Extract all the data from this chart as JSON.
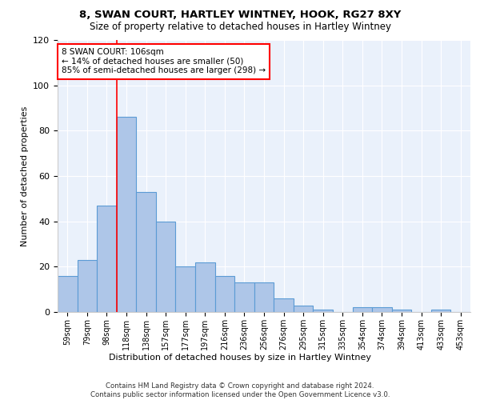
{
  "title1": "8, SWAN COURT, HARTLEY WINTNEY, HOOK, RG27 8XY",
  "title2": "Size of property relative to detached houses in Hartley Wintney",
  "xlabel": "Distribution of detached houses by size in Hartley Wintney",
  "ylabel": "Number of detached properties",
  "bar_labels": [
    "59sqm",
    "79sqm",
    "98sqm",
    "118sqm",
    "138sqm",
    "157sqm",
    "177sqm",
    "197sqm",
    "216sqm",
    "236sqm",
    "256sqm",
    "276sqm",
    "295sqm",
    "315sqm",
    "335sqm",
    "354sqm",
    "374sqm",
    "394sqm",
    "413sqm",
    "433sqm",
    "453sqm"
  ],
  "bar_values": [
    16,
    23,
    47,
    86,
    53,
    40,
    20,
    22,
    16,
    13,
    13,
    6,
    3,
    1,
    0,
    2,
    2,
    1,
    0,
    1,
    0
  ],
  "bar_color": "#aec6e8",
  "bar_edgecolor": "#5b9bd5",
  "bg_color": "#eaf1fb",
  "grid_color": "#ffffff",
  "ylim": [
    0,
    120
  ],
  "yticks": [
    0,
    20,
    40,
    60,
    80,
    100,
    120
  ],
  "red_line_x": 2.5,
  "annotation_line1": "8 SWAN COURT: 106sqm",
  "annotation_line2": "← 14% of detached houses are smaller (50)",
  "annotation_line3": "85% of semi-detached houses are larger (298) →",
  "footer": "Contains HM Land Registry data © Crown copyright and database right 2024.\nContains public sector information licensed under the Open Government Licence v3.0."
}
